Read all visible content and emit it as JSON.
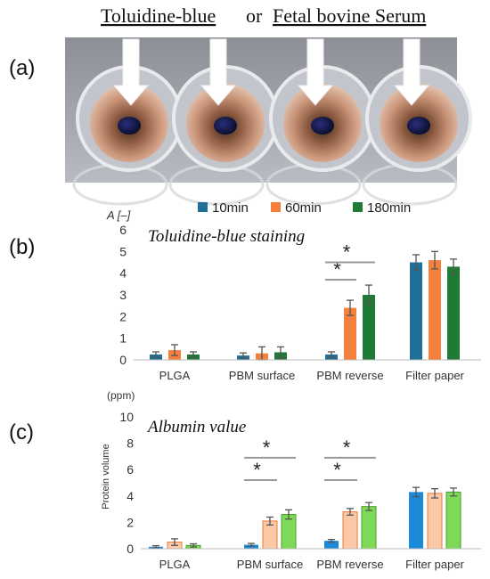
{
  "header": {
    "title_part1": "Toluidine-blue",
    "title_connector": "or",
    "title_part2": "Fetal bovine Serum"
  },
  "panel_labels": [
    "(a)",
    "(b)",
    "(c)"
  ],
  "legend": {
    "placement": "top",
    "entries": [
      "10min",
      "60min",
      "180min"
    ]
  },
  "colors": {
    "b_10min": "#1f6f96",
    "b_60min": "#f5803e",
    "b_180min": "#1f7a35",
    "c_10min_fill": "#1b8ad8",
    "c_60min_fill": "#fbc9a8",
    "c_60min_edge": "#e97a3a",
    "c_180min_fill": "#7ed957",
    "c_180min_edge": "#4d9e2e",
    "error": "#555555",
    "sig_line": "#999999"
  },
  "chart_data": [
    {
      "id": "b",
      "type": "bar",
      "title": "Toluidine-blue staining",
      "ylabel": "A [–]",
      "xlabel": "",
      "ylim": [
        0,
        6
      ],
      "yticks": [
        "0",
        "1",
        "2",
        "3",
        "4",
        "5",
        "6"
      ],
      "grid": false,
      "categories": [
        "PLGA",
        "PBM surface",
        "PBM reverse",
        "Filter paper"
      ],
      "series": [
        {
          "name": "10min",
          "values": [
            0.25,
            0.2,
            0.25,
            4.5
          ],
          "errors": [
            0.12,
            0.12,
            0.12,
            0.35
          ]
        },
        {
          "name": "60min",
          "values": [
            0.45,
            0.3,
            2.4,
            4.6
          ],
          "errors": [
            0.25,
            0.3,
            0.35,
            0.4
          ]
        },
        {
          "name": "180min",
          "values": [
            0.25,
            0.35,
            3.0,
            4.3
          ],
          "errors": [
            0.12,
            0.25,
            0.45,
            0.35
          ]
        }
      ],
      "significance": [
        {
          "category": 2,
          "from_series": 0,
          "to_series": 1,
          "y": 3.7,
          "label": "*"
        },
        {
          "category": 2,
          "from_series": 0,
          "to_series": 2,
          "y": 4.5,
          "label": "*"
        }
      ]
    },
    {
      "id": "c",
      "type": "bar",
      "title": "Albumin value",
      "ylabel": "Protein volume",
      "unit": "(ppm)",
      "xlabel": "",
      "ylim": [
        0,
        10
      ],
      "yticks": [
        "0",
        "2",
        "4",
        "6",
        "8",
        "10"
      ],
      "grid": false,
      "categories": [
        "PLGA",
        "PBM surface",
        "PBM reverse",
        "Filter paper"
      ],
      "series": [
        {
          "name": "10min",
          "values": [
            0.15,
            0.3,
            0.6,
            4.3
          ],
          "errors": [
            0.08,
            0.1,
            0.1,
            0.35
          ]
        },
        {
          "name": "60min",
          "values": [
            0.5,
            2.1,
            2.8,
            4.2
          ],
          "errors": [
            0.25,
            0.3,
            0.25,
            0.35
          ]
        },
        {
          "name": "180min",
          "values": [
            0.25,
            2.6,
            3.2,
            4.3
          ],
          "errors": [
            0.12,
            0.35,
            0.3,
            0.3
          ]
        }
      ],
      "significance": [
        {
          "category": 1,
          "from_series": 0,
          "to_series": 1,
          "y": 5.2,
          "label": "*"
        },
        {
          "category": 1,
          "from_series": 0,
          "to_series": 2,
          "y": 6.9,
          "label": "*"
        },
        {
          "category": 2,
          "from_series": 0,
          "to_series": 1,
          "y": 5.2,
          "label": "*"
        },
        {
          "category": 2,
          "from_series": 0,
          "to_series": 2,
          "y": 6.9,
          "label": "*"
        }
      ]
    }
  ]
}
